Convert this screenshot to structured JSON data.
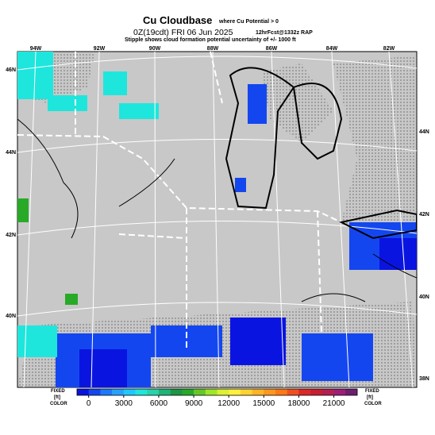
{
  "header": {
    "title": "Cu Cloudbase",
    "title_note": "where Cu Potential > 0",
    "valid_time": "0Z(19cdt) FRI 06 Jun 2025",
    "forecast_info": "12hrFcst@1332z RAP",
    "stipple_note": "Stipple shows cloud formation potential uncertainty of +/- 1000 ft"
  },
  "map": {
    "lon_labels": [
      "94W",
      "92W",
      "90W",
      "88W",
      "86W",
      "84W",
      "82W"
    ],
    "lat_labels_left": [
      "46N",
      "44N",
      "42N",
      "40N"
    ],
    "lat_labels_right": [
      "44N",
      "42N",
      "40N",
      "38N"
    ]
  },
  "colorbar": {
    "lim": [
      -1000,
      23000
    ],
    "ticks": [
      0,
      3000,
      6000,
      9000,
      12000,
      15000,
      18000,
      21000
    ],
    "colors": [
      "#0a14e0",
      "#1446f0",
      "#1e78ff",
      "#28a0ff",
      "#1ec8ff",
      "#1ee6dc",
      "#28d2aa",
      "#1eb478",
      "#1e9646",
      "#28aa28",
      "#64c828",
      "#a0e628",
      "#dcf032",
      "#fff03c",
      "#ffd232",
      "#ffb428",
      "#ff961e",
      "#ff7814",
      "#f0501e",
      "#dc2828",
      "#c81e32",
      "#b41e50",
      "#9b1e78",
      "#6e1e6e"
    ],
    "left_labels": [
      "FIXED",
      "[ft]",
      "COLOR"
    ],
    "right_labels": [
      "FIXED",
      "[ft]",
      "COLOR"
    ]
  }
}
